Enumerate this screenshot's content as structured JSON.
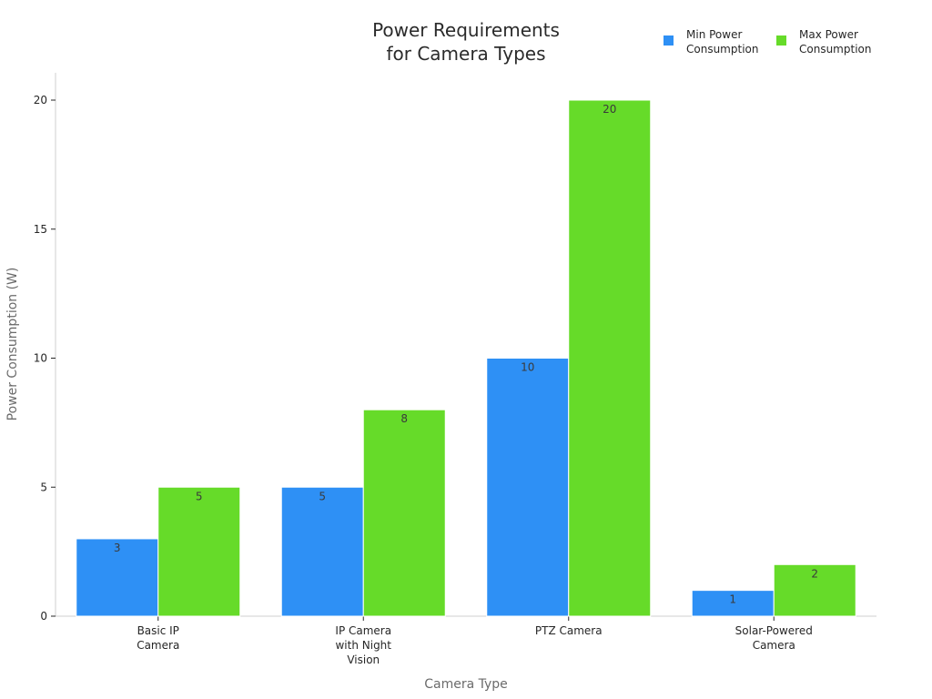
{
  "chart_data": {
    "type": "bar",
    "title": [
      "Power Requirements",
      "for Camera Types"
    ],
    "xlabel": "Camera Type",
    "ylabel": "Power Consumption (W)",
    "ylim": [
      0,
      21
    ],
    "yticks": [
      0,
      5,
      10,
      15,
      20
    ],
    "categories": [
      [
        "Basic IP",
        "Camera"
      ],
      [
        "IP Camera",
        "with Night",
        "Vision"
      ],
      [
        "PTZ Camera"
      ],
      [
        "Solar-Powered",
        "Camera"
      ]
    ],
    "series": [
      {
        "name": [
          "Min Power",
          "Consumption"
        ],
        "values": [
          3,
          5,
          10,
          1
        ],
        "color": "#2e90f5"
      },
      {
        "name": [
          "Max Power",
          "Consumption"
        ],
        "values": [
          5,
          8,
          20,
          2
        ],
        "color": "#66db29"
      }
    ],
    "grid": false,
    "legend_position": "top-right",
    "data_labels": true
  }
}
